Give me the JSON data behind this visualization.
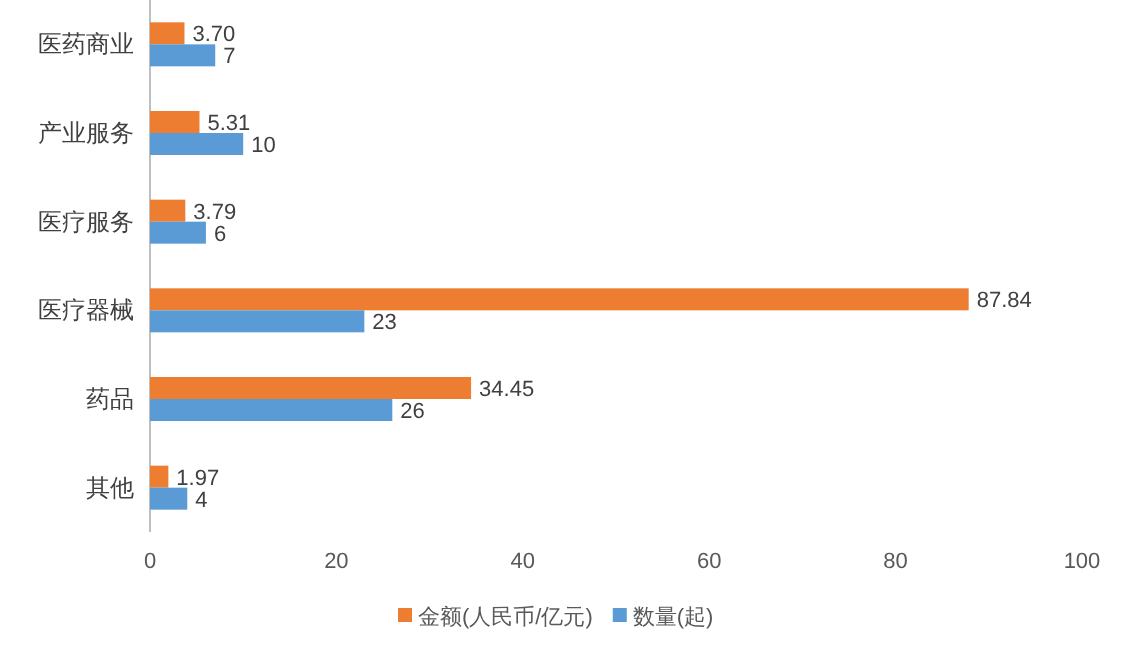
{
  "chart_data": {
    "type": "bar",
    "orientation": "horizontal",
    "categories": [
      "医药商业",
      "产业服务",
      "医疗服务",
      "医疗器械",
      "药品",
      "其他"
    ],
    "series": [
      {
        "name": "金额(人民币/亿元)",
        "color": "#ed7d31",
        "values": [
          3.7,
          5.31,
          3.79,
          87.84,
          34.45,
          1.97
        ],
        "value_labels": [
          "3.70",
          "5.31",
          "3.79",
          "87.84",
          "34.45",
          "1.97"
        ]
      },
      {
        "name": "数量(起)",
        "color": "#5b9bd5",
        "values": [
          7,
          10,
          6,
          23,
          26,
          4
        ],
        "value_labels": [
          "7",
          "10",
          "6",
          "23",
          "26",
          "4"
        ]
      }
    ],
    "xlim": [
      0,
      100
    ],
    "xticks": [
      0,
      20,
      40,
      60,
      80,
      100
    ],
    "grid": false,
    "legend": "bottom"
  }
}
